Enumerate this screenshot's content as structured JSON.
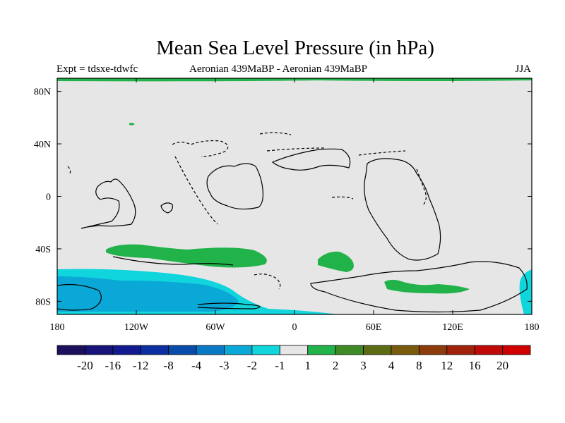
{
  "title": "Mean Sea Level Pressure (in hPa)",
  "subtitle_left": "Expt = tdsxe-tdwfc",
  "subtitle_center": "Aeronian 439MaBP - Aeronian 439MaBP",
  "subtitle_right": "JJA",
  "colors": {
    "background_field": "#e6e6e6",
    "positive_small": "#22b24a",
    "negative_small": "#11d5dc",
    "negative_medium": "#0aa8d6"
  },
  "chart_data": {
    "type": "heatmap",
    "title": "Mean Sea Level Pressure (in hPa)",
    "xlim": [
      -180,
      180
    ],
    "ylim": [
      -90,
      90
    ],
    "x_ticks": [
      {
        "value": -180,
        "label": "180"
      },
      {
        "value": -120,
        "label": "120W"
      },
      {
        "value": -60,
        "label": "60W"
      },
      {
        "value": 0,
        "label": "0"
      },
      {
        "value": 60,
        "label": "60E"
      },
      {
        "value": 120,
        "label": "120E"
      },
      {
        "value": 180,
        "label": "180"
      }
    ],
    "y_ticks": [
      {
        "value": 80,
        "label": "80N"
      },
      {
        "value": 40,
        "label": "40N"
      },
      {
        "value": 0,
        "label": "0"
      },
      {
        "value": -40,
        "label": "40S"
      },
      {
        "value": -80,
        "label": "80S"
      }
    ],
    "colorbar": {
      "colors": [
        "#1c0f5c",
        "#181378",
        "#131a90",
        "#0c2ea0",
        "#0a4caa",
        "#0a79c4",
        "#0aa8d6",
        "#11d5dc",
        "#e6e6e6",
        "#22b24a",
        "#3e8a24",
        "#5c6c14",
        "#7a5a0c",
        "#8c3c0a",
        "#a0220a",
        "#c00a0a",
        "#d00000"
      ],
      "labels": [
        "-20",
        "-16",
        "-12",
        "-8",
        "-4",
        "-3",
        "-2",
        "-1",
        "1",
        "2",
        "3",
        "4",
        "8",
        "12",
        "16",
        "20"
      ]
    }
  }
}
